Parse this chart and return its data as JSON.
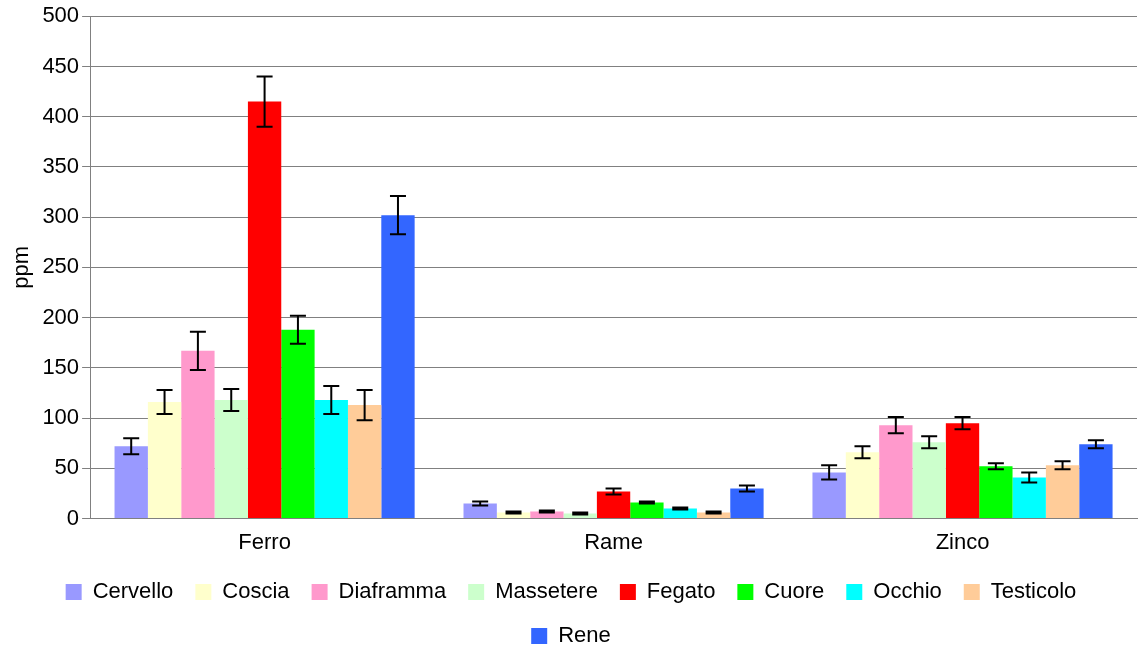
{
  "chart_data": {
    "type": "bar",
    "ylabel": "ppm",
    "categories": [
      "Ferro",
      "Rame",
      "Zinco"
    ],
    "series": [
      {
        "name": "Cervello",
        "color": "#9999ff",
        "values": [
          72,
          15,
          46
        ],
        "errors": [
          8,
          2,
          7
        ]
      },
      {
        "name": "Coscia",
        "color": "#ffffcc",
        "values": [
          116,
          6,
          66
        ],
        "errors": [
          12,
          1,
          6
        ]
      },
      {
        "name": "Diaframma",
        "color": "#ff99cc",
        "values": [
          167,
          7,
          93
        ],
        "errors": [
          19,
          1,
          8
        ]
      },
      {
        "name": "Massetere",
        "color": "#ccffcc",
        "values": [
          118,
          5,
          76
        ],
        "errors": [
          11,
          1,
          6
        ]
      },
      {
        "name": "Fegato",
        "color": "#ff0000",
        "values": [
          415,
          27,
          95
        ],
        "errors": [
          25,
          3,
          6
        ]
      },
      {
        "name": "Cuore",
        "color": "#00ff00",
        "values": [
          188,
          16,
          52
        ],
        "errors": [
          14,
          1,
          3
        ]
      },
      {
        "name": "Occhio",
        "color": "#00ffff",
        "values": [
          118,
          10,
          41
        ],
        "errors": [
          14,
          1,
          5
        ]
      },
      {
        "name": "Testicolo",
        "color": "#ffcc99",
        "values": [
          113,
          6,
          53
        ],
        "errors": [
          15,
          1,
          4
        ]
      },
      {
        "name": "Rene",
        "color": "#3366ff",
        "values": [
          302,
          30,
          74
        ],
        "errors": [
          19,
          3,
          4
        ]
      }
    ],
    "ylim": [
      0,
      500
    ],
    "yticks": [
      0,
      50,
      100,
      150,
      200,
      250,
      300,
      350,
      400,
      450,
      500
    ],
    "grid": "y",
    "legend": "bottom"
  }
}
